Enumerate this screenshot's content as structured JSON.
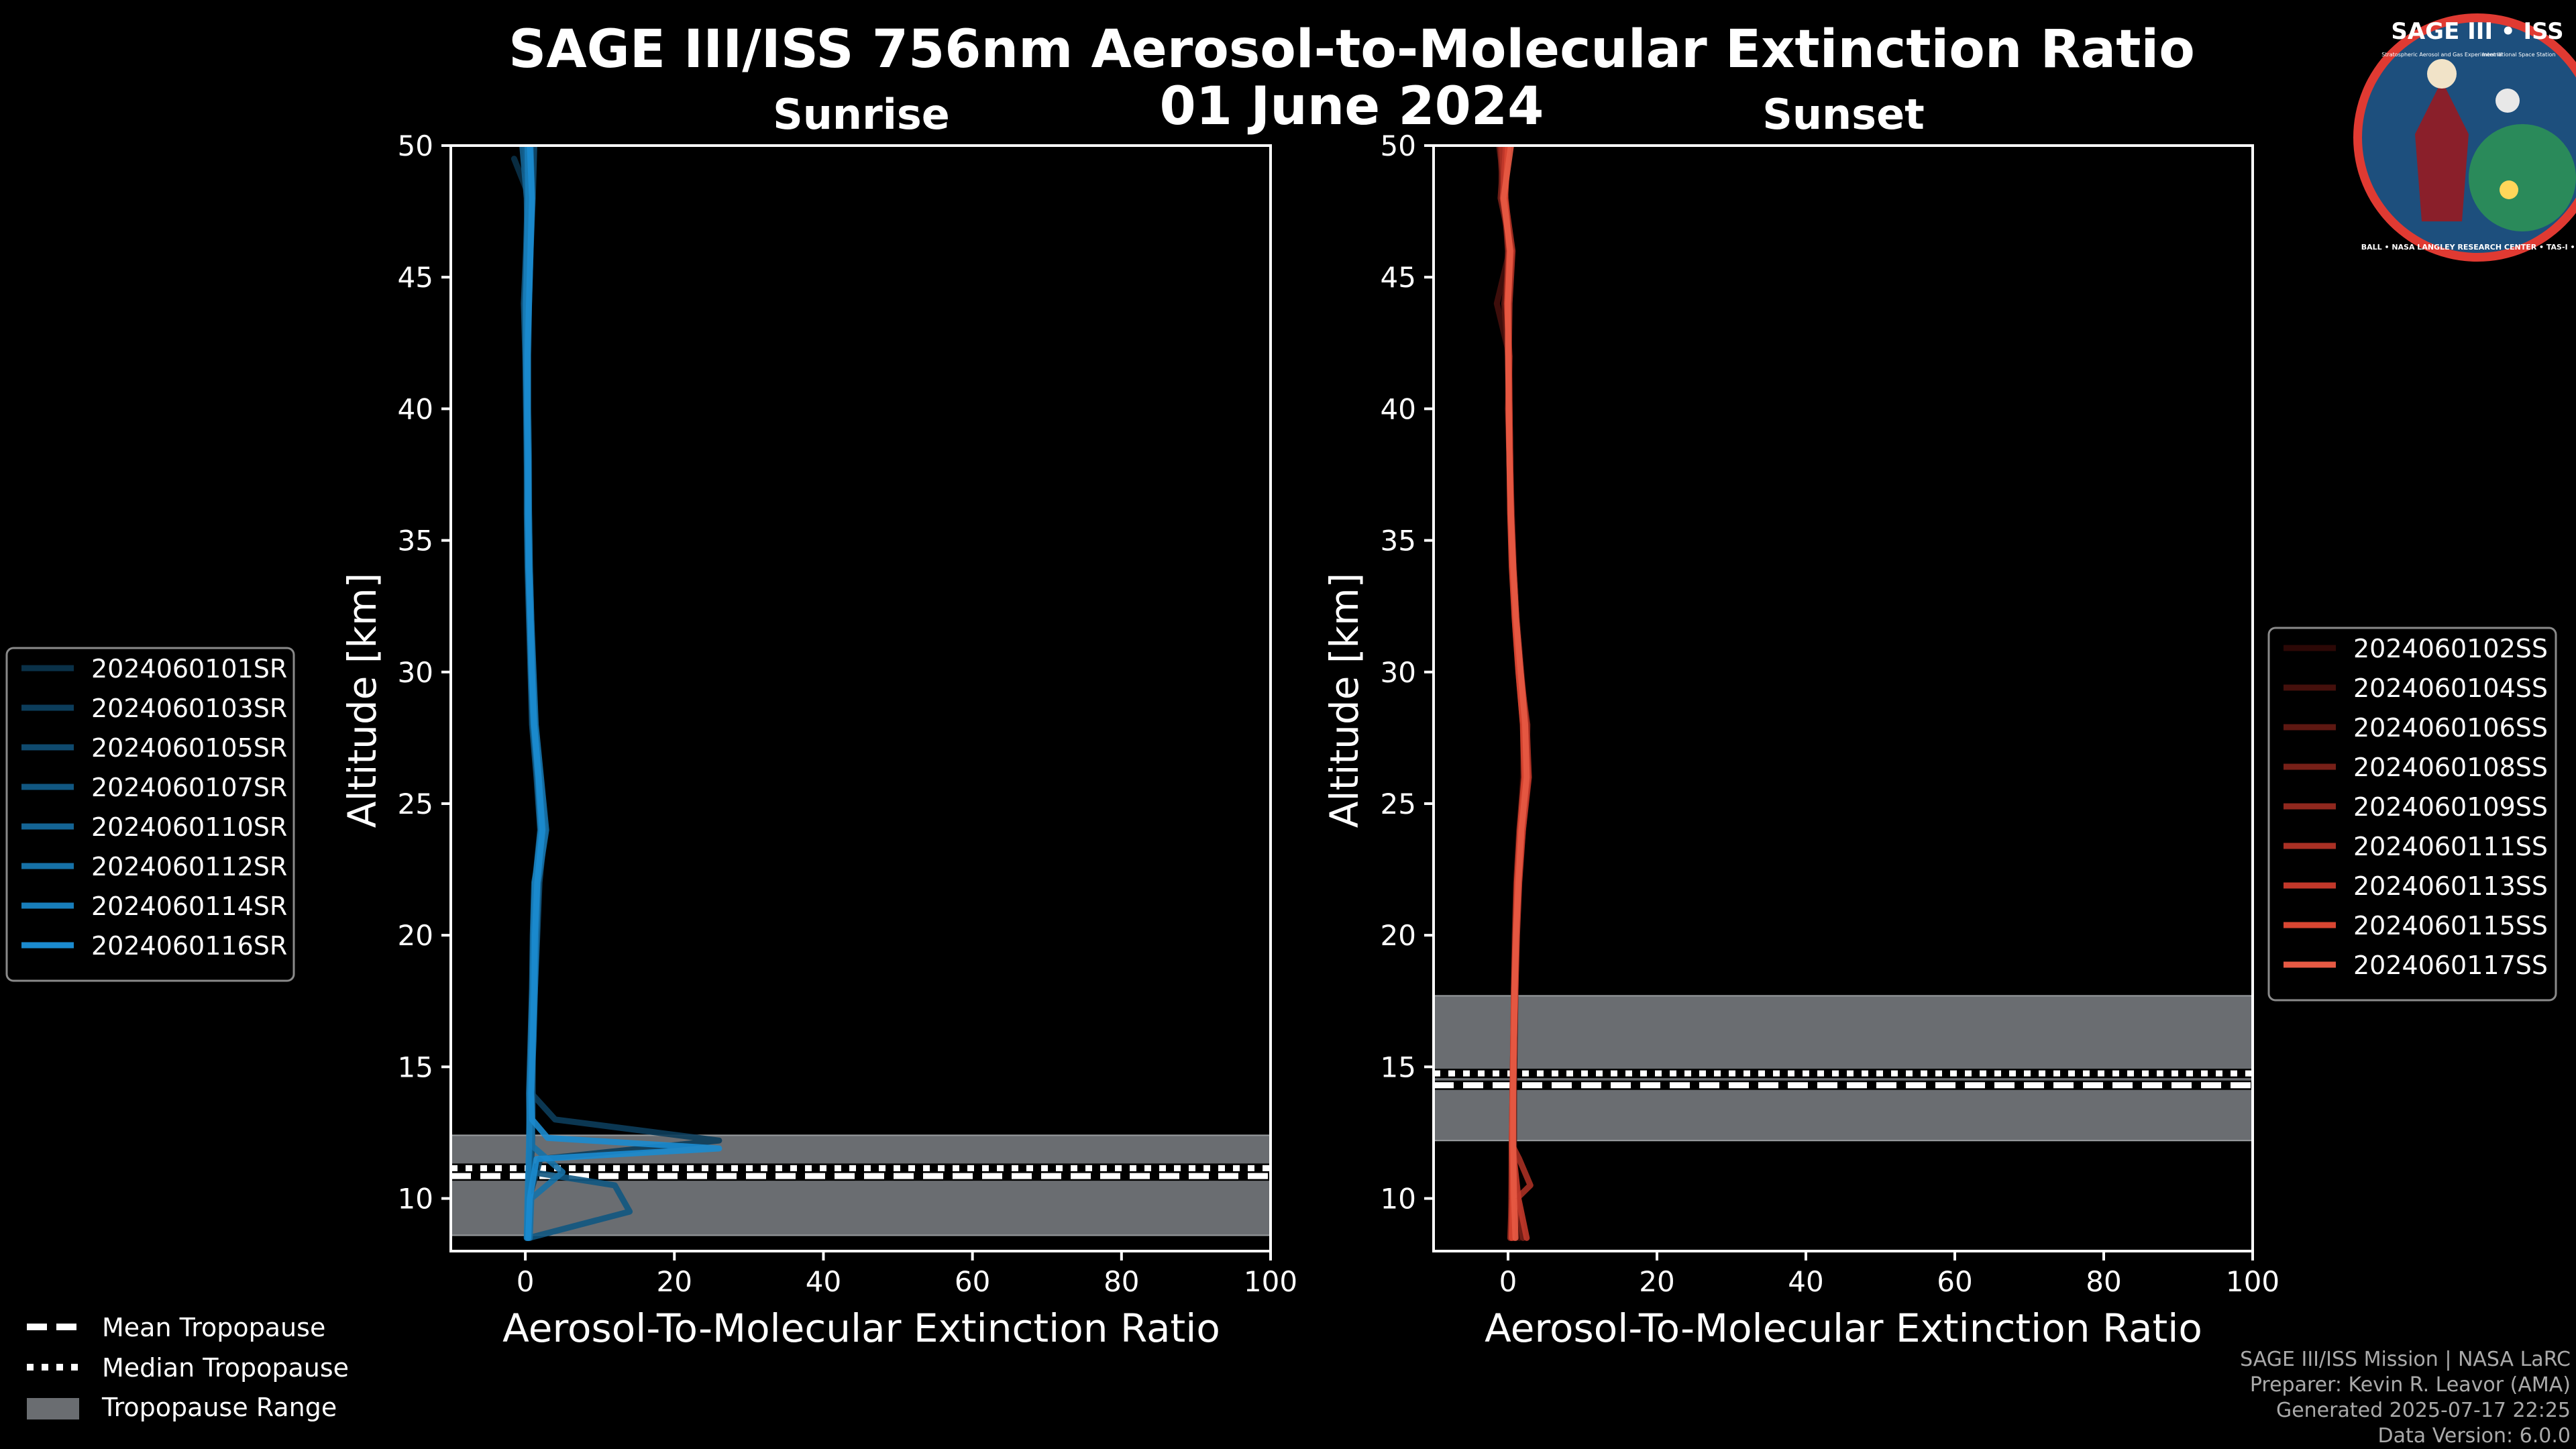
{
  "title_line1": "SAGE III/ISS 756nm Aerosol-to-Molecular Extinction Ratio",
  "title_line2": "01 June 2024",
  "logo": {
    "title": "SAGE III • ISS",
    "subtitle_left": "Stratospheric Aerosol and Gas Experiment III",
    "subtitle_right": "International Space Station",
    "ring": "BALL • NASA LANGLEY RESEARCH CENTER • TAS-I • ESA"
  },
  "credits": [
    "SAGE III/ISS Mission | NASA LaRC",
    "Preparer: Kevin R. Leavor (AMA)",
    "Generated 2025-07-17 22:25",
    "Data Version: 6.0.0"
  ],
  "bottom_legend": [
    {
      "label": "Mean Tropopause",
      "style": "dashed"
    },
    {
      "label": "Median Tropopause",
      "style": "dotted"
    },
    {
      "label": "Tropopause Range",
      "style": "patch"
    }
  ],
  "colors": {
    "sunrise": [
      "#0a3148",
      "#0c3d5b",
      "#0f4a6e",
      "#115781",
      "#146494",
      "#1671a7",
      "#187ebb",
      "#1b8bcf"
    ],
    "sunset": [
      "#2c0806",
      "#45100c",
      "#5e1812",
      "#772018",
      "#90281e",
      "#a93024",
      "#c2382a",
      "#d94632",
      "#e75a44"
    ],
    "tropopause_band": "#6a6d71",
    "axes": "#ffffff"
  },
  "chart_data": [
    {
      "type": "line",
      "title": "Sunrise",
      "xlabel": "Aerosol-To-Molecular Extinction Ratio",
      "ylabel": "Altitude [km]",
      "xlim": [
        -10,
        100
      ],
      "ylim": [
        8,
        50
      ],
      "xticks": [
        0,
        20,
        40,
        60,
        80,
        100
      ],
      "yticks": [
        10,
        15,
        20,
        25,
        30,
        35,
        40,
        45,
        50
      ],
      "legend_position": "left",
      "tropopause": {
        "mean": 10.85,
        "median": 11.15,
        "range": [
          8.6,
          12.4
        ]
      },
      "series": [
        {
          "name": "2024060101SR",
          "altitude": [
            8.5,
            10,
            12,
            14,
            16,
            18,
            20,
            22,
            24,
            26,
            28,
            30,
            32,
            34,
            36,
            38,
            40,
            42,
            44,
            46,
            48,
            49.5
          ],
          "ratio": [
            0.4,
            0.6,
            0.8,
            0.7,
            0.9,
            1.0,
            1.2,
            1.4,
            2.2,
            1.6,
            1.0,
            0.8,
            0.6,
            0.4,
            0.3,
            0.4,
            0.3,
            0.2,
            0.2,
            0.3,
            0.6,
            -1.5
          ]
        },
        {
          "name": "2024060103SR",
          "altitude": [
            8.5,
            10,
            11.5,
            12.2,
            13,
            14,
            16,
            18,
            20,
            22,
            24,
            26,
            28,
            30,
            32,
            34,
            36,
            38,
            40,
            42,
            44,
            46,
            48,
            49.8
          ],
          "ratio": [
            0.3,
            0.5,
            2.0,
            26.0,
            4.0,
            0.8,
            0.9,
            1.1,
            1.2,
            1.5,
            2.5,
            1.8,
            1.1,
            0.9,
            0.7,
            0.5,
            0.4,
            0.3,
            0.3,
            0.3,
            0.4,
            0.6,
            0.8,
            0.5
          ]
        },
        {
          "name": "2024060105SR",
          "altitude": [
            8.5,
            10,
            12,
            14,
            16,
            18,
            20,
            22,
            24,
            26,
            28,
            30,
            32,
            34,
            36,
            38,
            40,
            42,
            44,
            46,
            48,
            50
          ],
          "ratio": [
            0.2,
            0.5,
            0.9,
            1.0,
            1.0,
            1.3,
            1.6,
            1.9,
            2.6,
            2.0,
            1.3,
            1.0,
            0.8,
            0.6,
            0.5,
            0.5,
            0.4,
            0.4,
            0.5,
            0.7,
            1.0,
            1.2
          ]
        },
        {
          "name": "2024060107SR",
          "altitude": [
            8.5,
            9.5,
            10.5,
            11,
            12,
            14,
            16,
            18,
            20,
            22,
            24,
            26,
            28,
            30,
            32,
            34,
            36,
            38,
            40,
            42,
            44,
            46,
            48,
            50
          ],
          "ratio": [
            0.5,
            14.0,
            12.0,
            0.8,
            0.7,
            0.6,
            0.8,
            1.0,
            1.1,
            1.3,
            2.0,
            1.5,
            0.9,
            0.7,
            0.5,
            0.3,
            0.2,
            0.2,
            0.1,
            0.0,
            -0.2,
            0.1,
            0.3,
            0.0
          ]
        },
        {
          "name": "2024060110SR",
          "altitude": [
            8.5,
            10,
            12,
            14,
            16,
            18,
            20,
            22,
            24,
            26,
            28,
            30,
            32,
            34,
            36,
            38,
            40,
            42,
            44,
            46,
            48,
            50
          ],
          "ratio": [
            0.3,
            0.4,
            0.6,
            0.5,
            0.7,
            0.9,
            1.0,
            1.2,
            2.4,
            1.9,
            1.2,
            0.9,
            0.7,
            0.5,
            0.4,
            0.2,
            0.2,
            0.1,
            0.0,
            0.3,
            0.2,
            -0.4
          ]
        },
        {
          "name": "2024060112SR",
          "altitude": [
            8.5,
            10,
            11,
            12,
            14,
            16,
            18,
            20,
            22,
            24,
            26,
            28,
            30,
            32,
            34,
            36,
            38,
            40,
            42,
            44,
            46,
            48,
            50
          ],
          "ratio": [
            0.6,
            0.8,
            5.0,
            0.9,
            0.8,
            1.1,
            1.3,
            1.5,
            1.7,
            2.8,
            2.1,
            1.4,
            1.1,
            0.8,
            0.6,
            0.5,
            0.4,
            0.3,
            0.3,
            0.4,
            0.6,
            0.9,
            0.7
          ]
        },
        {
          "name": "2024060114SR",
          "altitude": [
            8.5,
            10,
            12,
            14,
            16,
            18,
            20,
            22,
            24,
            26,
            28,
            30,
            32,
            34,
            36,
            38,
            40,
            42,
            44,
            46,
            48,
            50
          ],
          "ratio": [
            0.2,
            0.3,
            0.5,
            0.6,
            0.8,
            1.0,
            1.1,
            1.3,
            2.1,
            1.7,
            1.1,
            0.8,
            0.6,
            0.4,
            0.3,
            0.3,
            0.2,
            0.1,
            0.1,
            0.2,
            0.4,
            0.3
          ]
        },
        {
          "name": "2024060116SR",
          "altitude": [
            8.5,
            10,
            11.5,
            11.9,
            12.3,
            13,
            14,
            16,
            18,
            20,
            22,
            24,
            26,
            28,
            30,
            32,
            34,
            36,
            38,
            40,
            42,
            44,
            46,
            48,
            50
          ],
          "ratio": [
            0.4,
            0.6,
            1.5,
            26.0,
            3.0,
            0.9,
            0.8,
            1.0,
            1.2,
            1.3,
            1.6,
            2.3,
            1.8,
            1.2,
            0.9,
            0.7,
            0.5,
            0.4,
            0.4,
            0.3,
            0.3,
            0.5,
            0.7,
            0.9,
            0.6
          ]
        }
      ]
    },
    {
      "type": "line",
      "title": "Sunset",
      "xlabel": "Aerosol-To-Molecular Extinction Ratio",
      "ylabel": "Altitude [km]",
      "xlim": [
        -10,
        100
      ],
      "ylim": [
        8,
        50
      ],
      "xticks": [
        0,
        20,
        40,
        60,
        80,
        100
      ],
      "yticks": [
        10,
        15,
        20,
        25,
        30,
        35,
        40,
        45,
        50
      ],
      "legend_position": "right",
      "tropopause": {
        "mean": 14.3,
        "median": 14.75,
        "range": [
          12.2,
          17.7
        ]
      },
      "series": [
        {
          "name": "2024060102SS",
          "altitude": [
            8.5,
            10,
            12,
            14,
            16,
            18,
            20,
            22,
            24,
            26,
            28,
            30,
            32,
            34,
            36,
            38,
            40,
            42,
            44,
            46,
            48,
            50
          ],
          "ratio": [
            0.6,
            0.5,
            0.6,
            0.7,
            0.8,
            0.9,
            1.0,
            1.2,
            1.6,
            2.0,
            2.2,
            1.5,
            1.0,
            0.6,
            0.4,
            0.2,
            0.1,
            0.0,
            -0.3,
            0.4,
            -0.6,
            -0.2
          ]
        },
        {
          "name": "2024060104SS",
          "altitude": [
            8.5,
            10,
            12,
            14,
            16,
            18,
            20,
            22,
            24,
            26,
            28,
            30,
            32,
            34,
            36,
            38,
            40,
            42,
            44,
            46,
            48,
            50
          ],
          "ratio": [
            1.5,
            1.0,
            0.8,
            0.8,
            0.9,
            1.0,
            1.1,
            1.4,
            1.9,
            2.6,
            2.4,
            1.8,
            1.2,
            0.8,
            0.5,
            0.3,
            0.2,
            0.2,
            -1.5,
            0.2,
            -0.8,
            -1.0
          ]
        },
        {
          "name": "2024060106SS",
          "altitude": [
            8.5,
            10,
            12,
            14,
            16,
            18,
            20,
            22,
            24,
            26,
            28,
            30,
            32,
            34,
            36,
            38,
            40,
            42,
            44,
            46,
            48,
            50
          ],
          "ratio": [
            0.4,
            0.4,
            0.5,
            0.6,
            0.7,
            0.8,
            0.9,
            1.1,
            1.5,
            2.1,
            2.0,
            1.4,
            0.9,
            0.6,
            0.4,
            0.3,
            0.1,
            0.0,
            -0.5,
            0.3,
            -0.3,
            -1.2
          ]
        },
        {
          "name": "2024060108SS",
          "altitude": [
            8.5,
            10,
            12,
            14,
            16,
            18,
            20,
            22,
            24,
            26,
            28,
            30,
            32,
            34,
            36,
            38,
            40,
            42,
            44,
            46,
            48,
            50
          ],
          "ratio": [
            2.0,
            1.2,
            0.7,
            0.7,
            0.8,
            0.9,
            1.0,
            1.3,
            1.7,
            2.4,
            2.6,
            1.6,
            1.1,
            0.7,
            0.5,
            0.2,
            0.1,
            0.1,
            0.0,
            0.5,
            -1.0,
            -0.5
          ]
        },
        {
          "name": "2024060109SS",
          "altitude": [
            8.5,
            10,
            12,
            14,
            16,
            18,
            20,
            22,
            24,
            26,
            28,
            30,
            32,
            34,
            36,
            38,
            40,
            42,
            44,
            46,
            48,
            50
          ],
          "ratio": [
            0.3,
            0.5,
            0.6,
            0.6,
            0.7,
            0.9,
            1.1,
            1.3,
            1.8,
            2.3,
            2.1,
            1.5,
            1.0,
            0.6,
            0.3,
            0.2,
            0.0,
            0.2,
            -0.2,
            0.0,
            -0.5,
            -1.0
          ]
        },
        {
          "name": "2024060111SS",
          "altitude": [
            8.5,
            10,
            10.5,
            11.5,
            12,
            14,
            16,
            18,
            20,
            22,
            24,
            26,
            28,
            30,
            32,
            34,
            36,
            38,
            40,
            42,
            44,
            46,
            48,
            50
          ],
          "ratio": [
            0.8,
            1.2,
            3.0,
            1.5,
            0.6,
            0.7,
            0.8,
            1.0,
            1.1,
            1.4,
            2.0,
            2.8,
            2.5,
            1.7,
            1.1,
            0.7,
            0.4,
            0.3,
            0.2,
            0.1,
            0.2,
            0.6,
            -0.4,
            -0.8
          ]
        },
        {
          "name": "2024060113SS",
          "altitude": [
            8.5,
            10,
            12,
            14,
            16,
            18,
            20,
            22,
            24,
            26,
            28,
            30,
            32,
            34,
            36,
            38,
            40,
            42,
            44,
            46,
            48,
            50
          ],
          "ratio": [
            2.5,
            1.4,
            0.6,
            0.7,
            0.8,
            1.0,
            1.2,
            1.5,
            2.0,
            2.7,
            2.3,
            1.6,
            1.0,
            0.6,
            0.4,
            0.3,
            0.2,
            0.1,
            0.0,
            0.4,
            -0.7,
            -0.3
          ]
        },
        {
          "name": "2024060115SS",
          "altitude": [
            8.5,
            10,
            12,
            14,
            16,
            18,
            20,
            22,
            24,
            26,
            28,
            30,
            32,
            34,
            36,
            38,
            40,
            42,
            44,
            46,
            48,
            50
          ],
          "ratio": [
            0.5,
            0.6,
            0.5,
            0.6,
            0.7,
            0.8,
            1.0,
            1.2,
            1.6,
            2.2,
            2.0,
            1.4,
            0.9,
            0.5,
            0.3,
            0.2,
            0.1,
            0.1,
            -0.1,
            0.2,
            -0.4,
            0.0
          ]
        },
        {
          "name": "2024060117SS",
          "altitude": [
            8.5,
            10,
            12,
            14,
            16,
            18,
            20,
            22,
            24,
            26,
            28,
            30,
            32,
            34,
            36,
            38,
            40,
            42,
            44,
            46,
            48,
            50
          ],
          "ratio": [
            1.0,
            0.8,
            0.7,
            0.7,
            0.8,
            0.9,
            1.1,
            1.4,
            1.8,
            2.5,
            2.3,
            1.7,
            1.1,
            0.7,
            0.4,
            0.2,
            0.1,
            0.0,
            0.0,
            0.3,
            -0.6,
            0.4
          ]
        }
      ]
    }
  ]
}
